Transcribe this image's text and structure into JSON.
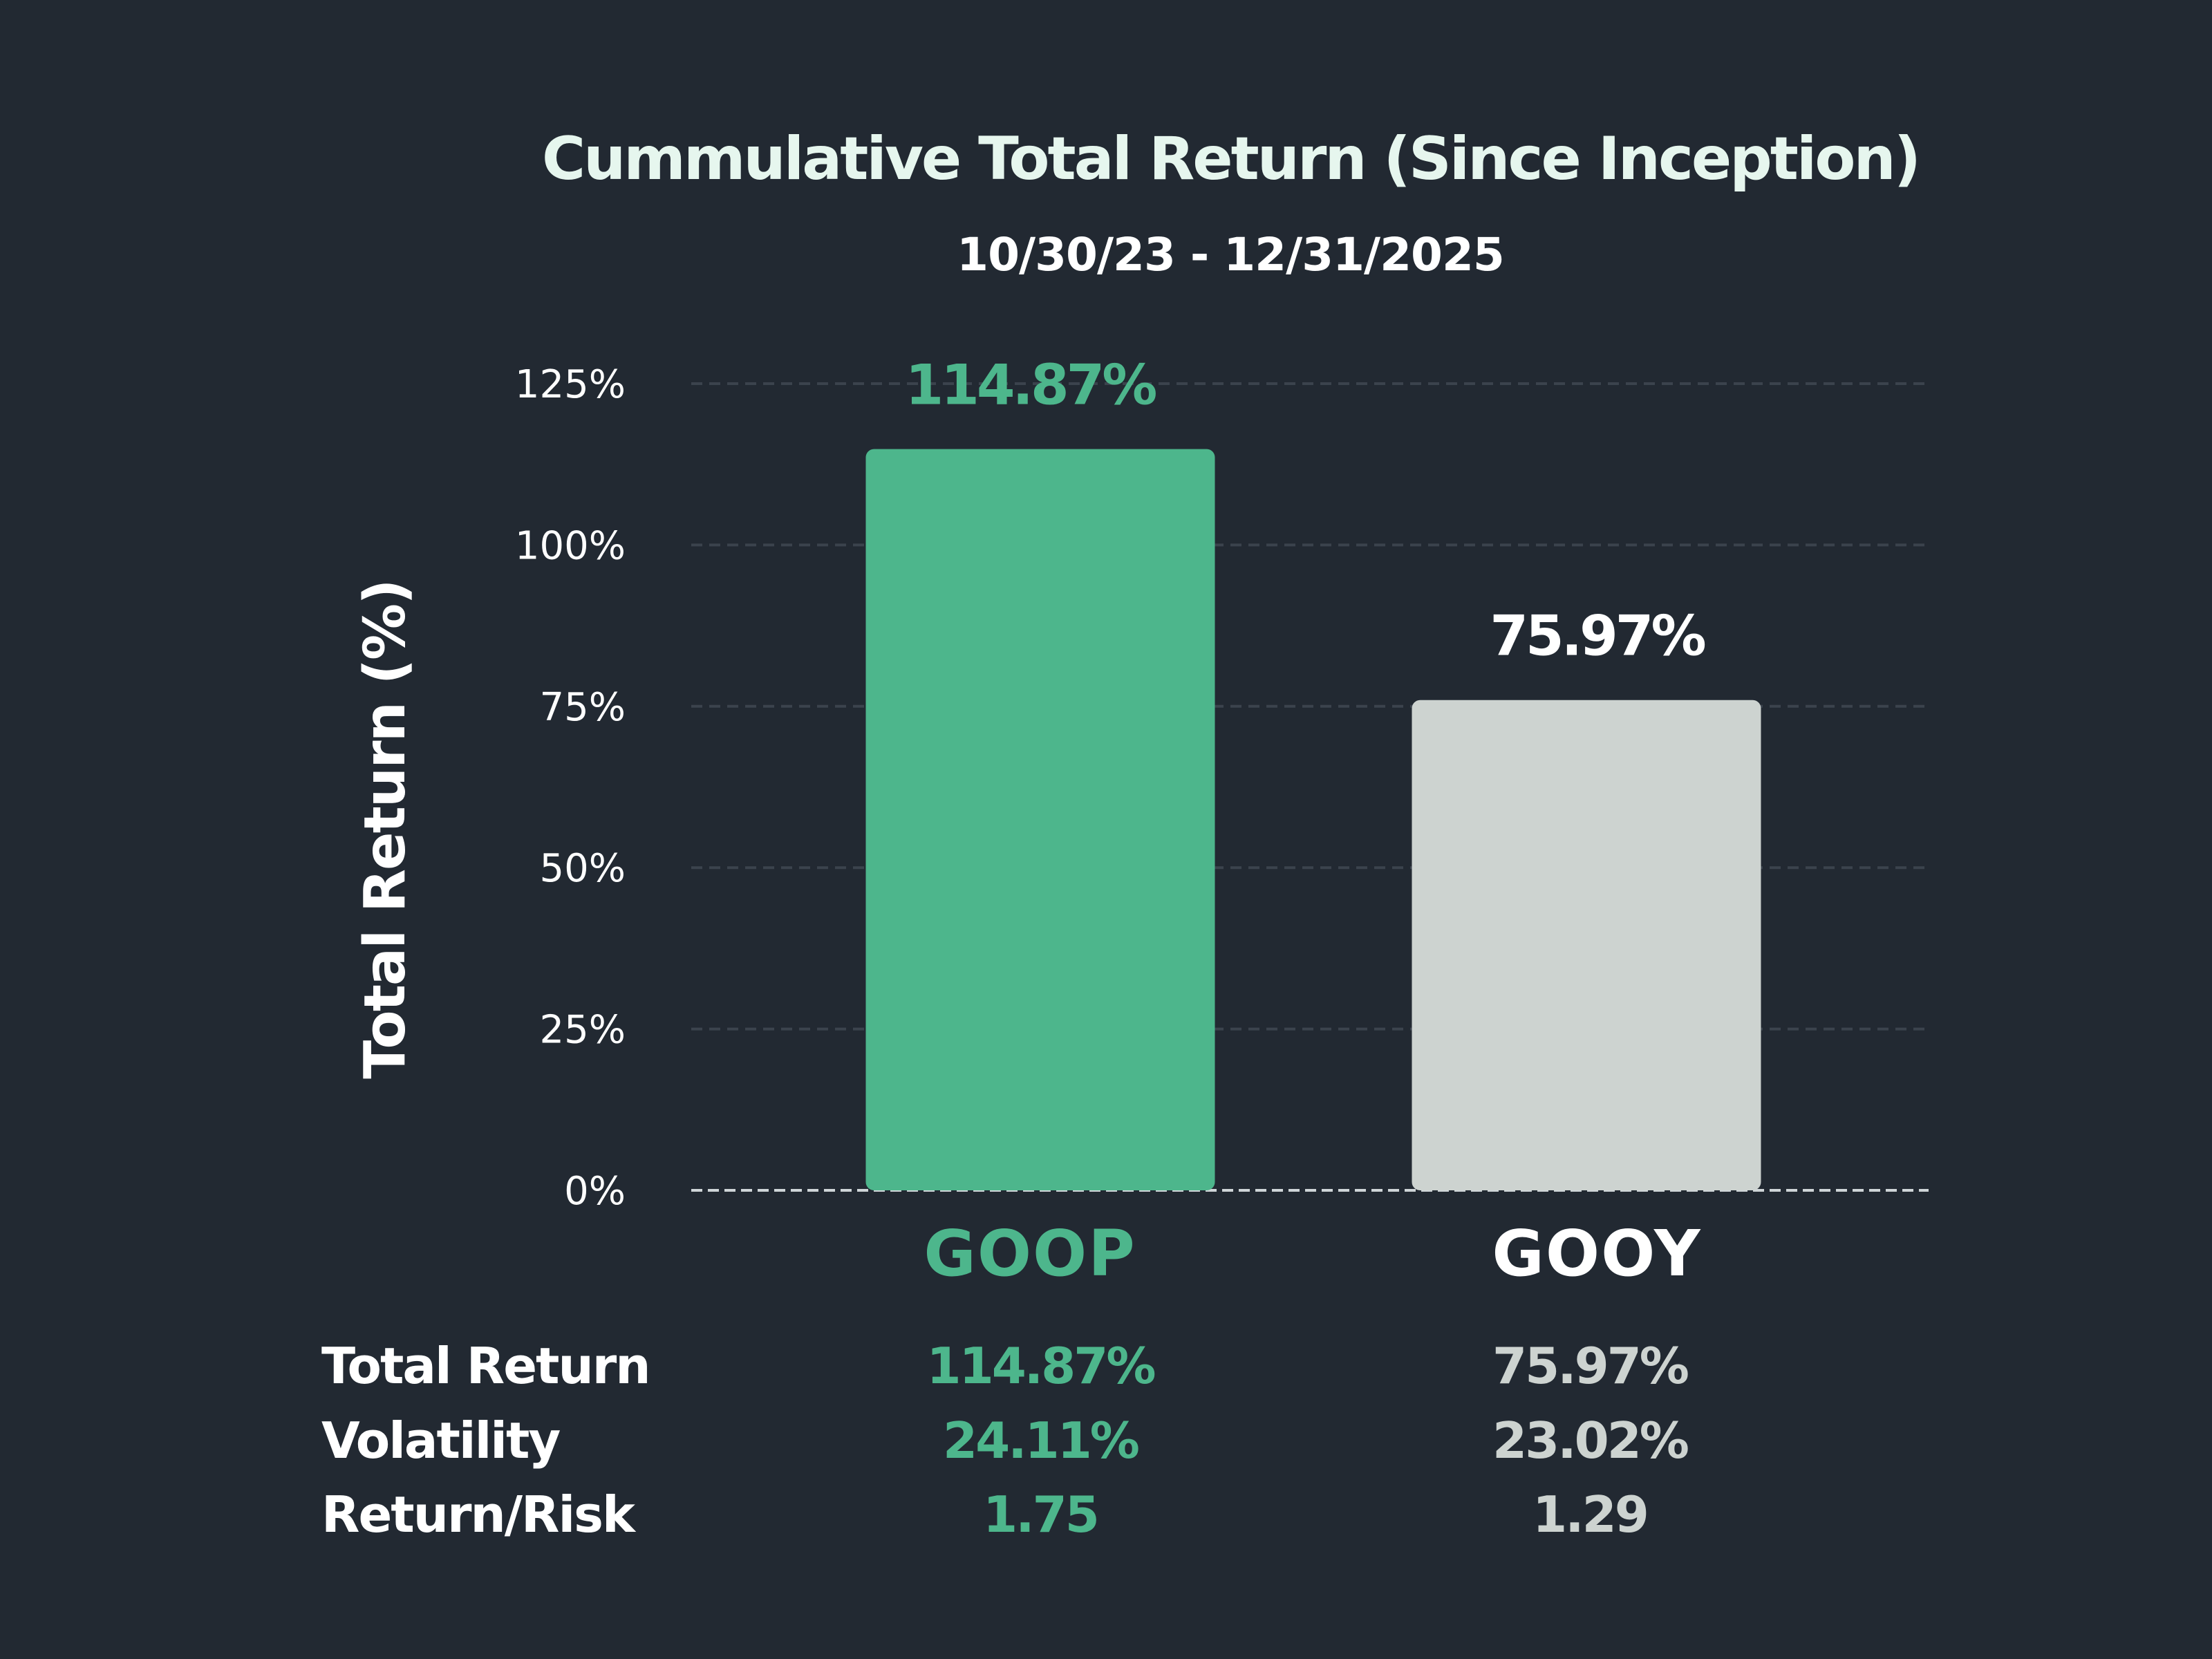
{
  "chart_data": {
    "type": "bar",
    "title": "Cummulative Total Return (Since Inception)",
    "subtitle": "10/30/23  -  12/31/2025",
    "ylabel": "Total Return (%)",
    "xlabel": "",
    "ylim": [
      0,
      125
    ],
    "yticks": [
      0,
      25,
      50,
      75,
      100,
      125
    ],
    "ytick_labels": [
      "0%",
      "25%",
      "50%",
      "75%",
      "100%",
      "125%"
    ],
    "categories": [
      "GOOP",
      "GOOY"
    ],
    "values": [
      114.87,
      75.97
    ],
    "data_labels": [
      "114.87%",
      "75.97%"
    ],
    "colors": [
      "#4db68c",
      "#cdd3d0"
    ],
    "grid": true,
    "legend": "none"
  },
  "colors": {
    "background": "#222932",
    "goop": "#4db68c",
    "gooy": "#cdd3d0",
    "gooy_label": "#ffffff",
    "title": "#e6f6ee"
  },
  "stats": {
    "rows": [
      {
        "label": "Total Return",
        "goop": "114.87%",
        "gooy": "75.97%"
      },
      {
        "label": "Volatility",
        "goop": "24.11%",
        "gooy": "23.02%"
      },
      {
        "label": "Return/Risk",
        "goop": "1.75",
        "gooy": "1.29"
      }
    ]
  }
}
